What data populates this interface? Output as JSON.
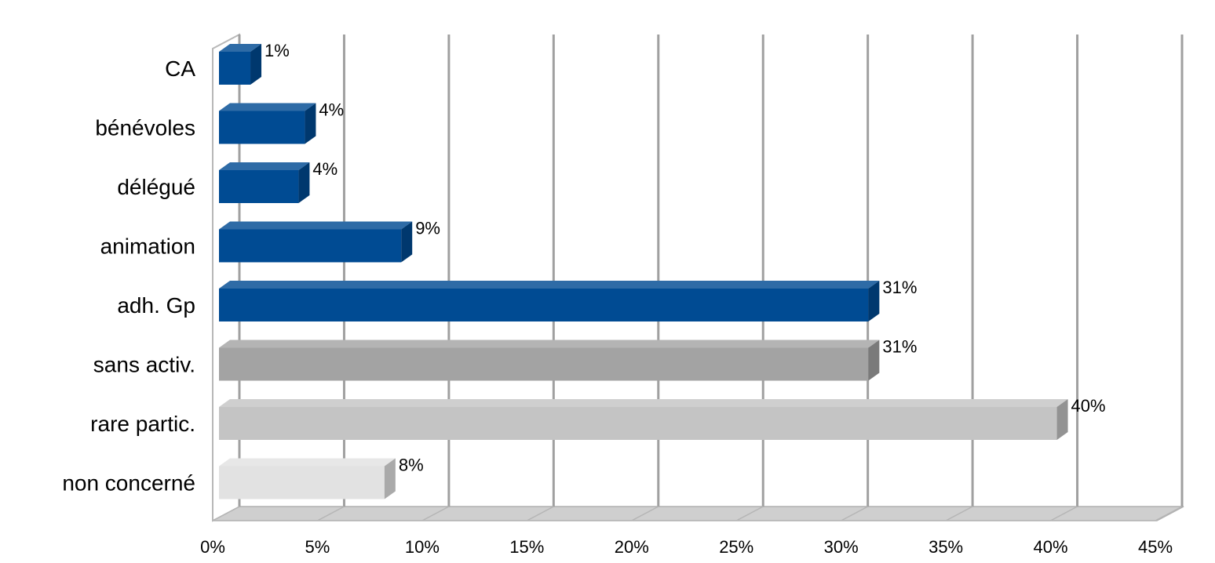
{
  "chart_data": {
    "type": "bar",
    "orientation": "horizontal",
    "three_d": true,
    "categories": [
      "CA",
      "bénévoles",
      "délégué",
      "animation",
      "adh. Gp",
      "sans activ.",
      "rare partic.",
      "non concerné"
    ],
    "values": [
      1.5,
      4.1,
      3.8,
      8.7,
      31,
      31,
      40,
      7.9
    ],
    "data_labels": [
      "1%",
      "4%",
      "4%",
      "9%",
      "31%",
      "31%",
      "40%",
      "8%"
    ],
    "bar_colors": [
      "#004b93",
      "#004b93",
      "#004b93",
      "#004b93",
      "#004b93",
      "#a3a3a3",
      "#c4c4c4",
      "#e2e2e2"
    ],
    "xlim": [
      0,
      45
    ],
    "x_ticks": [
      "0%",
      "5%",
      "10%",
      "15%",
      "20%",
      "25%",
      "30%",
      "35%",
      "40%",
      "45%"
    ],
    "grid": true,
    "legend": false
  }
}
